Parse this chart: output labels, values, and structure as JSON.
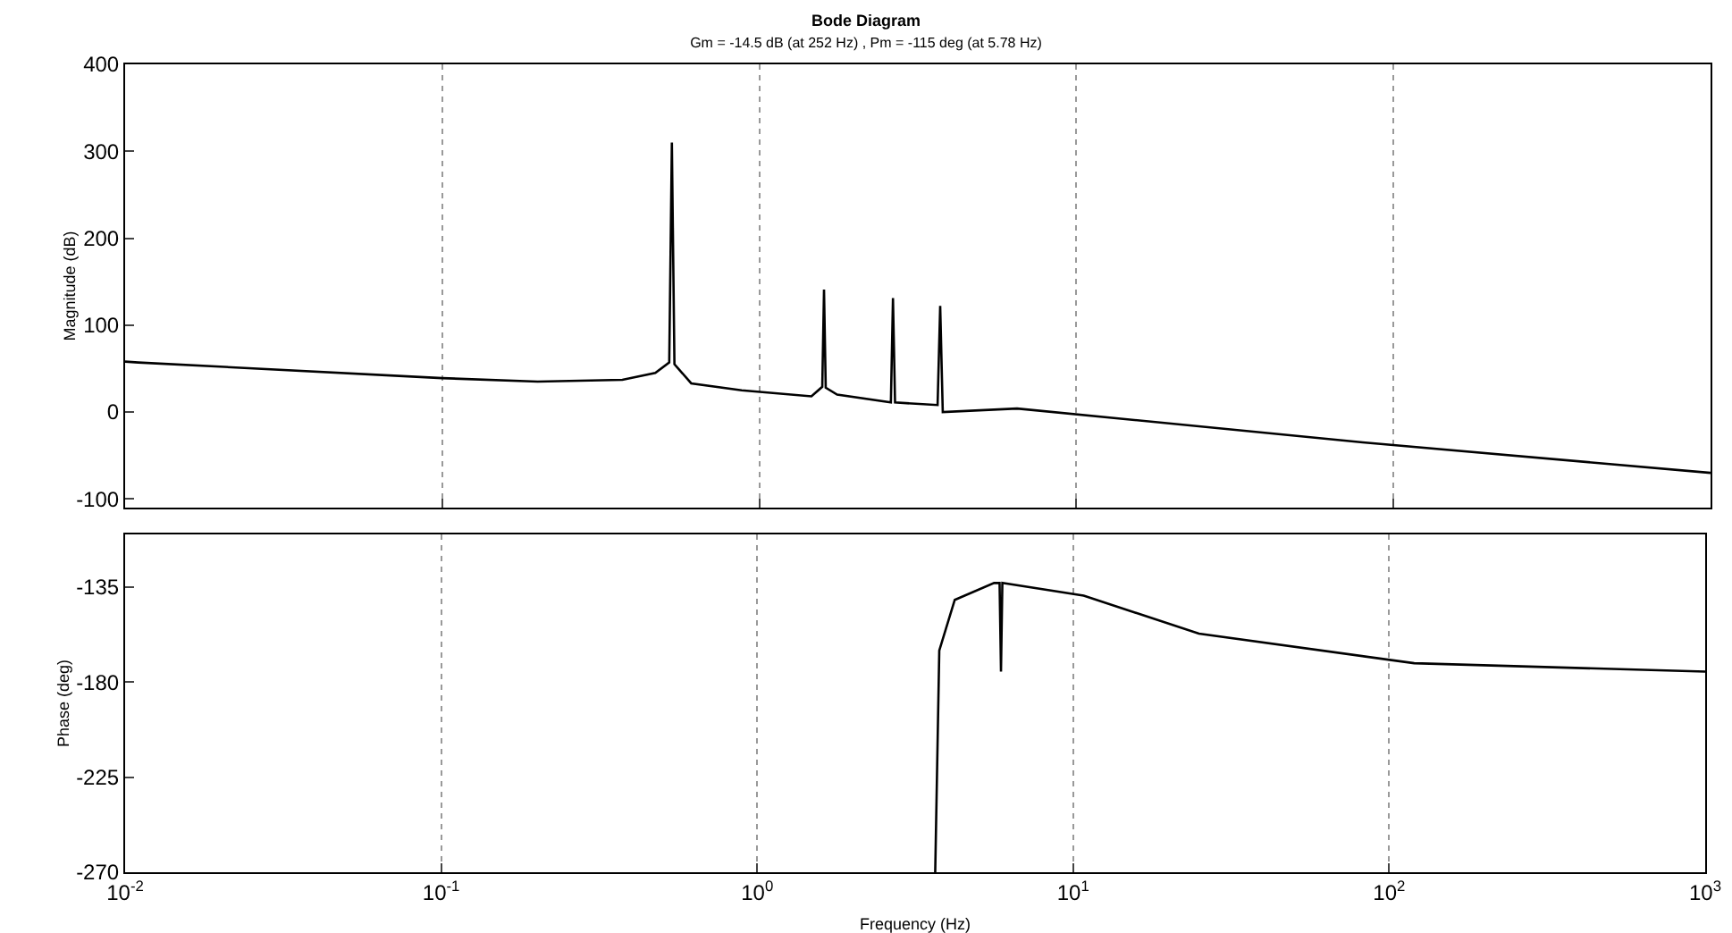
{
  "chart_data": [
    {
      "type": "line",
      "title": "Bode Diagram",
      "subtitle": "Gm = -14.5 dB (at 252 Hz) , Pm = -115 deg (at 5.78 Hz)",
      "ylabel": "Magnitude (dB)",
      "x": [
        0.01,
        0.011,
        0.1,
        0.2,
        0.37,
        0.47,
        0.52,
        0.53,
        0.54,
        0.61,
        0.88,
        1.46,
        1.58,
        1.6,
        1.62,
        1.76,
        2.6,
        2.64,
        2.68,
        3.65,
        3.72,
        3.79,
        6.5,
        80,
        1000
      ],
      "series": [
        {
          "color": "#000000",
          "values": [
            58,
            57,
            39,
            35,
            37,
            45,
            57,
            310,
            55,
            33,
            25,
            18,
            29,
            141,
            28,
            20,
            11,
            131,
            11,
            8,
            122,
            0,
            4,
            -35,
            -70
          ]
        }
      ],
      "xlim": [
        0.01,
        1000
      ],
      "xticks": [
        0.01,
        0.1,
        1,
        10,
        100,
        1000
      ],
      "ylim": [
        -110,
        400
      ],
      "yticks": [
        -100,
        0,
        100,
        200,
        300,
        400
      ],
      "log": "x",
      "grid": "x",
      "tick_labels": "y",
      "marker": "none",
      "line_style": "solid"
    },
    {
      "type": "line",
      "xlabel": "Frequency (Hz)",
      "ylabel": "Phase (deg)",
      "x": [
        3.66,
        3.77,
        4.22,
        5.62,
        5.85,
        5.91,
        5.97,
        10.8,
        25,
        120,
        1000
      ],
      "series": [
        {
          "color": "#000000",
          "values": [
            -270,
            -165,
            -141,
            -133,
            -133,
            -175,
            -133,
            -139,
            -157,
            -171,
            -175
          ]
        }
      ],
      "xlim": [
        0.01,
        1000
      ],
      "xticks": [
        {
          "value": 0.01,
          "label": "10$^{-2}$"
        },
        {
          "value": 0.1,
          "label": "10$^{-1}$"
        },
        {
          "value": 1,
          "label": "10$^{0}$"
        },
        {
          "value": 10,
          "label": "10$^{1}$"
        },
        {
          "value": 100,
          "label": "10$^{2}$"
        },
        {
          "value": 1000,
          "label": "10$^{3}$"
        }
      ],
      "ylim": [
        -270,
        -110
      ],
      "yticks": [
        -270,
        -225,
        -180,
        -135
      ],
      "log": "x",
      "grid": "x",
      "marker": "none",
      "line_style": "solid"
    }
  ]
}
